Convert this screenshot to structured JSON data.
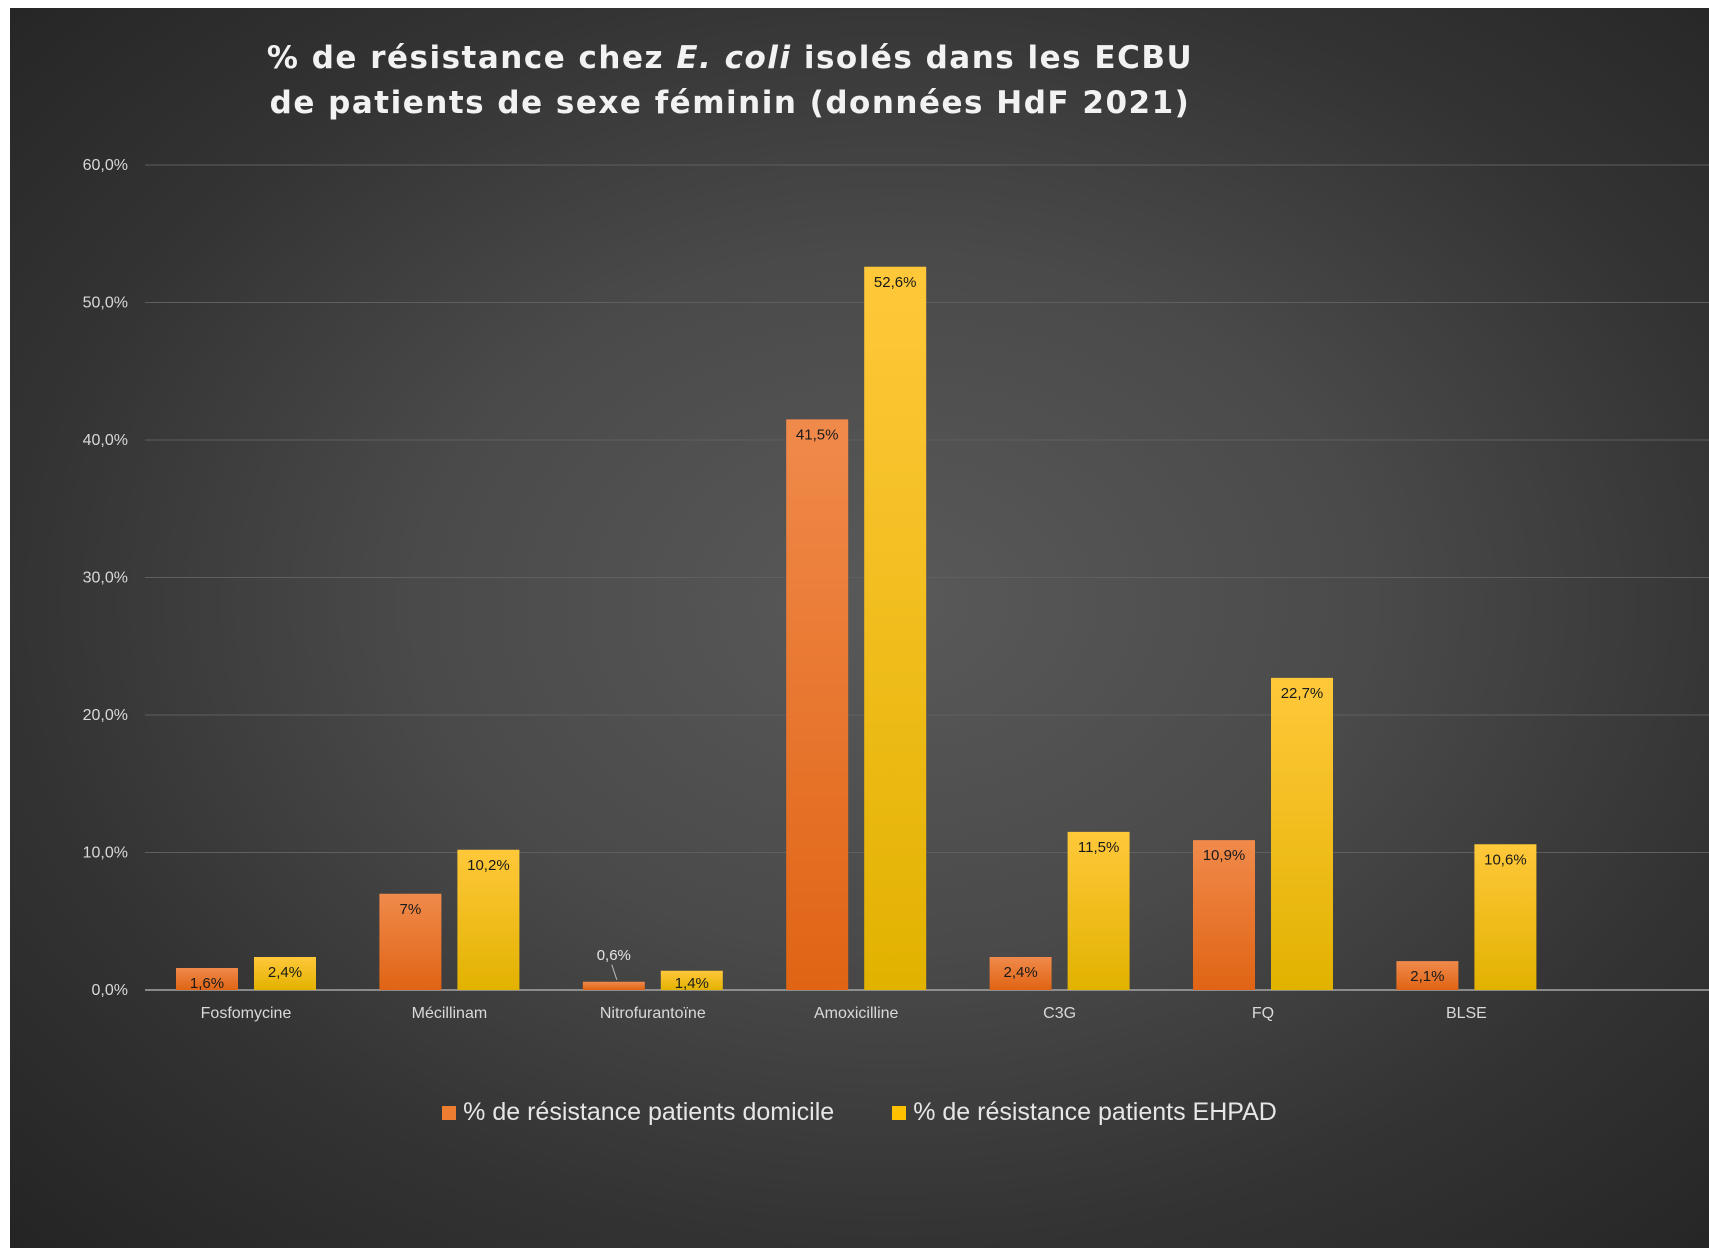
{
  "title": {
    "line1_before": "% de résistance chez ",
    "line1_italic": "E. coli",
    "line1_after": " isolés dans les ECBU",
    "line2": "de patients de sexe féminin (données HdF 2021)"
  },
  "colors": {
    "series_domicile": "#ed7d31",
    "series_ehpad": "#ffc000",
    "background": "#3f3f3f",
    "text": "#d9d9d9",
    "gridline": "#5f5f5f"
  },
  "chart_data": {
    "type": "bar",
    "title": "% de résistance chez E. coli isolés dans les ECBU de patients de sexe féminin (données HdF 2021)",
    "categories": [
      "Fosfomycine",
      "Mécillinam",
      "Nitrofurantoïne",
      "Amoxicilline",
      "C3G",
      "FQ",
      "BLSE"
    ],
    "series": [
      {
        "name": "% de résistance patients domicile",
        "values": [
          1.6,
          7.0,
          0.6,
          41.5,
          2.4,
          10.9,
          2.1
        ],
        "labels": [
          "1,6%",
          "7%",
          "0,6%",
          "41,5%",
          "2,4%",
          "10,9%",
          "2,1%"
        ]
      },
      {
        "name": "% de résistance patients EHPAD",
        "values": [
          2.4,
          10.2,
          1.4,
          52.6,
          11.5,
          22.7,
          10.6
        ],
        "labels": [
          "2,4%",
          "10,2%",
          "1,4%",
          "52,6%",
          "11,5%",
          "22,7%",
          "10,6%"
        ]
      }
    ],
    "yticks": [
      0,
      10,
      20,
      30,
      40,
      50,
      60
    ],
    "ytick_labels": [
      "0,0%",
      "10,0%",
      "20,0%",
      "30,0%",
      "40,0%",
      "50,0%",
      "60,0%"
    ],
    "ylim": [
      0,
      60
    ],
    "grid": true,
    "legend_position": "bottom",
    "xlabel": "",
    "ylabel": ""
  }
}
